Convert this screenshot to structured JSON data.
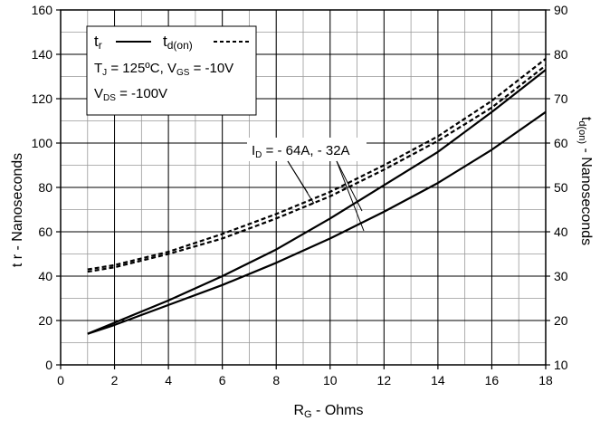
{
  "chart_data": {
    "type": "line",
    "xlabel_main": "R",
    "xlabel_sub": "G",
    "xlabel_rest": " - Ohms",
    "ylabel_left": "t r - Nanoseconds",
    "ylabel_right_main": "t",
    "ylabel_right_sub": "d(on)",
    "ylabel_right_rest": " - Nanoseconds",
    "xlim": [
      0,
      18
    ],
    "ylim_left": [
      0,
      160
    ],
    "ylim_right": [
      10,
      90
    ],
    "xticks": [
      "0",
      "2",
      "4",
      "6",
      "8",
      "10",
      "12",
      "14",
      "16",
      "18"
    ],
    "yticks_left": [
      "0",
      "20",
      "40",
      "60",
      "80",
      "100",
      "120",
      "140",
      "160"
    ],
    "yticks_right": [
      "10",
      "20",
      "30",
      "40",
      "50",
      "60",
      "70",
      "80",
      "90"
    ],
    "grid": true,
    "legend": {
      "tr_main": "t",
      "tr_sub": "r",
      "td_main": "t",
      "td_sub": "d(on)",
      "cond1_a": "T",
      "cond1_a_sub": "J",
      "cond1_b": " = 125ºC,  V",
      "cond1_b_sub": "GS",
      "cond1_c": " = -10V",
      "cond2_a": "V",
      "cond2_a_sub": "DS",
      "cond2_b": " = -100V"
    },
    "annotation": {
      "main": "I",
      "sub": "D",
      "rest": " = - 64A, - 32A"
    },
    "series": [
      {
        "name": "tr",
        "line": "solid",
        "axis": "left",
        "x": [
          1,
          2,
          4,
          6,
          8,
          10,
          12,
          14,
          16,
          18
        ],
        "y": [
          14,
          19,
          29,
          40,
          52,
          66,
          81,
          96,
          114,
          133
        ]
      },
      {
        "name": "tr",
        "line": "solid",
        "axis": "left",
        "x": [
          1,
          2,
          4,
          6,
          8,
          10,
          12,
          14,
          16,
          18
        ],
        "y": [
          14,
          18,
          27,
          36,
          46,
          57,
          69,
          82,
          97,
          114
        ]
      },
      {
        "name": "td(on)",
        "line": "dashed",
        "axis": "right",
        "x": [
          1,
          2,
          4,
          6,
          8,
          10,
          12,
          14,
          16,
          18
        ],
        "y": [
          31.5,
          32.5,
          35.5,
          39.5,
          44,
          49,
          55,
          61.5,
          69.5,
          79
        ]
      },
      {
        "name": "td(on)",
        "line": "dashed",
        "axis": "right",
        "x": [
          1,
          2,
          4,
          6,
          8,
          10,
          12,
          14,
          16,
          18
        ],
        "y": [
          31,
          32,
          35,
          38.5,
          43,
          48,
          54,
          60.5,
          68,
          77.5
        ]
      }
    ]
  }
}
